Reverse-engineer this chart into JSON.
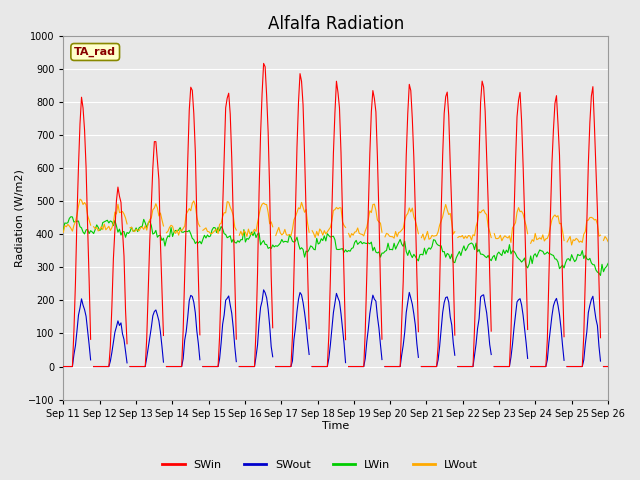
{
  "title": "Alfalfa Radiation",
  "xlabel": "Time",
  "ylabel": "Radiation (W/m2)",
  "ylim": [
    -100,
    1000
  ],
  "xtick_labels": [
    "Sep 11",
    "Sep 12",
    "Sep 13",
    "Sep 14",
    "Sep 15",
    "Sep 16",
    "Sep 17",
    "Sep 18",
    "Sep 19",
    "Sep 20",
    "Sep 21",
    "Sep 22",
    "Sep 23",
    "Sep 24",
    "Sep 25",
    "Sep 26"
  ],
  "legend_labels": [
    "SWin",
    "SWout",
    "LWin",
    "LWout"
  ],
  "SWin_color": "#ff0000",
  "SWout_color": "#0000cc",
  "LWin_color": "#00cc00",
  "LWout_color": "#ffaa00",
  "fig_bg_color": "#e8e8e8",
  "plot_bg_color": "#e8e8e8",
  "annotation_text": "TA_rad",
  "annotation_text_color": "#880000",
  "annotation_bg": "#ffffcc",
  "annotation_edge": "#888800",
  "grid_color": "#ffffff",
  "title_fontsize": 12,
  "n_days": 15,
  "SW_peaks": [
    820,
    550,
    680,
    845,
    845,
    930,
    880,
    855,
    845,
    835,
    840,
    860,
    840,
    810,
    830
  ]
}
